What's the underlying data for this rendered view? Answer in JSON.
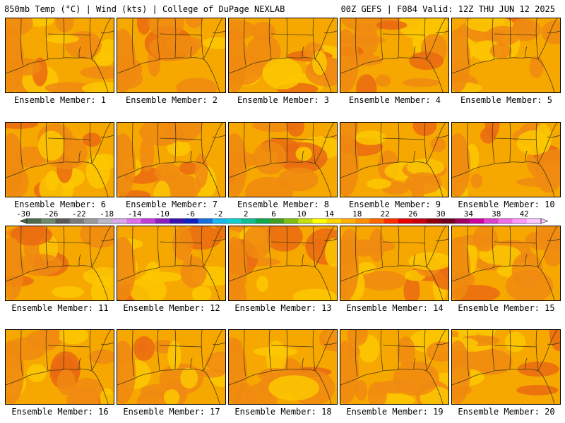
{
  "header": {
    "left": "850mb Temp (°C) | Wind (kts) | College of DuPage NEXLAB",
    "right": "00Z GEFS | F084 Valid: 12Z THU JUN 12 2025"
  },
  "members": [
    {
      "label": "Ensemble Member: 1"
    },
    {
      "label": "Ensemble Member: 2"
    },
    {
      "label": "Ensemble Member: 3"
    },
    {
      "label": "Ensemble Member: 4"
    },
    {
      "label": "Ensemble Member: 5"
    },
    {
      "label": "Ensemble Member: 6"
    },
    {
      "label": "Ensemble Member: 7"
    },
    {
      "label": "Ensemble Member: 8"
    },
    {
      "label": "Ensemble Member: 9"
    },
    {
      "label": "Ensemble Member: 10"
    },
    {
      "label": "Ensemble Member: 11"
    },
    {
      "label": "Ensemble Member: 12"
    },
    {
      "label": "Ensemble Member: 13"
    },
    {
      "label": "Ensemble Member: 14"
    },
    {
      "label": "Ensemble Member: 15"
    },
    {
      "label": "Ensemble Member: 16"
    },
    {
      "label": "Ensemble Member: 17"
    },
    {
      "label": "Ensemble Member: 18"
    },
    {
      "label": "Ensemble Member: 19"
    },
    {
      "label": "Ensemble Member: 20"
    }
  ],
  "colorbar": {
    "tick_labels": [
      "-30",
      "-26",
      "-22",
      "-18",
      "-14",
      "-10",
      "-6",
      "-2",
      "2",
      "6",
      "10",
      "14",
      "18",
      "22",
      "26",
      "30",
      "34",
      "38",
      "42"
    ],
    "colors": [
      "#4f6a4f",
      "#6f8a6f",
      "#5a5a5a",
      "#7a7a7a",
      "#9a9a9a",
      "#b8b8c8",
      "#d8a8e8",
      "#e070f0",
      "#c040d8",
      "#8a20c0",
      "#3a10b0",
      "#1020c0",
      "#1870e0",
      "#18b8f0",
      "#10d0d0",
      "#10c090",
      "#10a850",
      "#40a020",
      "#80c010",
      "#c8e010",
      "#ffff00",
      "#ffd700",
      "#ffb000",
      "#ff9000",
      "#ff6600",
      "#ff3000",
      "#e80000",
      "#c80010",
      "#900010",
      "#700020",
      "#a00060",
      "#d000a0",
      "#e040d0",
      "#f070e8",
      "#ff99ff",
      "#ffc8ff"
    ]
  },
  "field_colors": {
    "base": "#f6a800",
    "warm": "#f08a10",
    "hot": "#ea6a10",
    "cool": "#fbc800",
    "outline": "#4a3a10"
  }
}
